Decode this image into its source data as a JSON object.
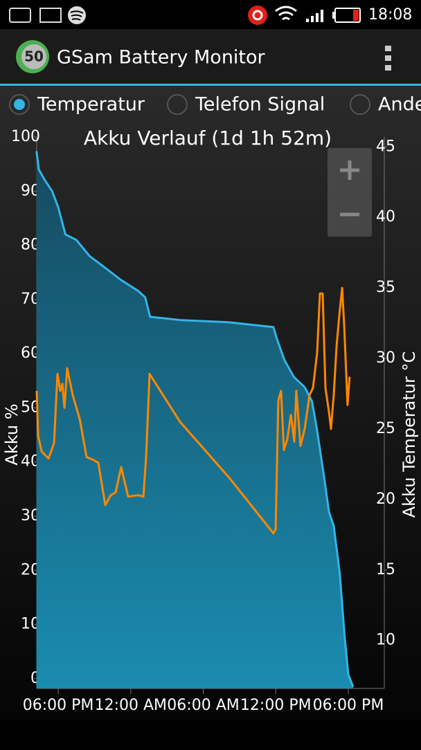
{
  "status_bar": {
    "time": "18:08"
  },
  "app_bar": {
    "badge": "50",
    "title": "GSam Battery Monitor"
  },
  "tabs": {
    "items": [
      "Temperatur",
      "Telefon Signal",
      "Ande"
    ],
    "selected": 0
  },
  "chart_data": {
    "type": "line",
    "title": "Akku Verlauf (1d 1h 52m)",
    "y_label": "Akku %",
    "y2_label": "Akku Temperatur °C",
    "xlim": [
      16.22,
      44.98
    ],
    "xticks": [
      {
        "value": 18,
        "label": "06:00 PM"
      },
      {
        "value": 24,
        "label": "12:00 AM"
      },
      {
        "value": 30,
        "label": "06:00 AM"
      },
      {
        "value": 36,
        "label": "12:00 PM"
      },
      {
        "value": 42,
        "label": "06:00 PM"
      }
    ],
    "ylim": [
      -1.8,
      100
    ],
    "yticks": [
      0,
      10,
      20,
      30,
      40,
      50,
      60,
      70,
      80,
      90,
      100
    ],
    "y2lim": [
      6.6,
      45.7
    ],
    "y2ticks": [
      10,
      15,
      20,
      25,
      30,
      35,
      40,
      45
    ],
    "series": [
      {
        "color": "#33b5e5",
        "fill": true,
        "x": [
          16.2,
          16.4,
          16.9,
          17.5,
          18,
          18.6,
          19.5,
          20.6,
          21.8,
          23.2,
          24.6,
          25.2,
          25.6,
          28.1,
          32.1,
          35.8,
          36.1,
          36.7,
          37.5,
          38.4,
          39.0,
          39.4,
          40.0,
          40.4,
          40.8,
          41.3,
          41.7,
          42.0,
          42.4
        ],
        "values": [
          97.4,
          94,
          92,
          90,
          87,
          82,
          81,
          78,
          76,
          73.6,
          71.6,
          70.4,
          66.8,
          66.2,
          65.8,
          64.9,
          62.7,
          58.9,
          55.7,
          53.8,
          51.2,
          46.1,
          37.2,
          30.8,
          28.2,
          19.3,
          7.8,
          0.8,
          -1.5
        ]
      },
      {
        "color": "#ff8800",
        "axis": "y2",
        "fill": false,
        "x": [
          16.22,
          16.34,
          16.63,
          17.2,
          17.66,
          17.94,
          18.17,
          18.34,
          18.52,
          18.74,
          19.2,
          19.78,
          20.35,
          20.92,
          21.32,
          21.89,
          22.35,
          22.75,
          23.21,
          23.79,
          24.64,
          25.05,
          25.27,
          25.56,
          28.08,
          32.09,
          35.81,
          35.99,
          36.21,
          36.44,
          36.67,
          36.96,
          37.25,
          37.53,
          37.7,
          38.05,
          38.39,
          38.79,
          39.08,
          39.42,
          39.65,
          39.88,
          40.11,
          40.4,
          40.57,
          40.8,
          41.03,
          41.26,
          41.49,
          41.66,
          41.94,
          42.11
        ],
        "values": [
          27.7,
          24.5,
          23.4,
          22.9,
          24.0,
          28.9,
          27.7,
          28.2,
          26.5,
          29.3,
          27.4,
          25.7,
          23.0,
          22.8,
          22.6,
          19.6,
          20.3,
          20.5,
          22.3,
          20.2,
          20.3,
          20.2,
          23.0,
          28.9,
          25.5,
          21.6,
          17.6,
          17.9,
          27.0,
          27.7,
          23.5,
          24.3,
          26.0,
          24.1,
          27.7,
          23.8,
          25.0,
          27.4,
          27.9,
          30.4,
          34.6,
          34.6,
          27.9,
          26.2,
          25.0,
          27.4,
          30.9,
          33.1,
          35.0,
          32.3,
          26.7,
          28.7
        ]
      }
    ]
  }
}
